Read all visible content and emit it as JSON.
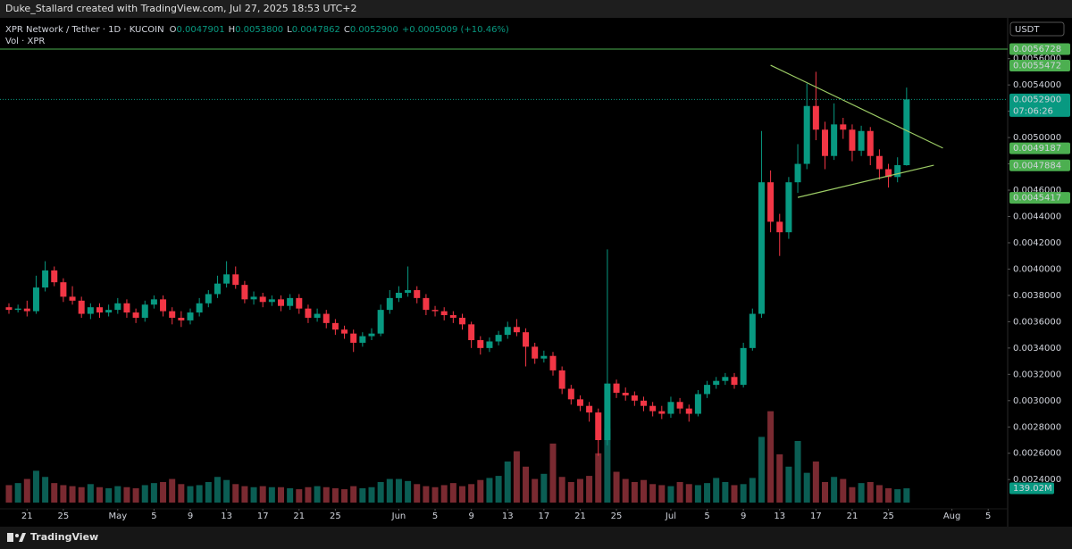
{
  "header": {
    "credit": "Duke_Stallard created with TradingView.com, Jul 27, 2025 18:53 UTC+2"
  },
  "footer": {
    "brand": "TradingView"
  },
  "chart_data": {
    "type": "candlestick",
    "legend": {
      "symbol": "XPR Network / Tether · 1D · KUCOIN",
      "fields": [
        {
          "key": "O",
          "label": "0.0047901"
        },
        {
          "key": "H",
          "label": "0.0053800"
        },
        {
          "key": "L",
          "label": "0.0047862"
        },
        {
          "key": "C",
          "label": "0.0052900"
        }
      ],
      "change": "+0.0005009 (+10.46%)",
      "volume": "Vol · XPR"
    },
    "currency": "USDT",
    "up_color": "#089981",
    "down_color": "#f23645",
    "volume_up_color": "#0b5e54",
    "volume_down_color": "#7a2a31",
    "x": [
      "2025-04-19",
      "2025-04-20",
      "2025-04-21",
      "2025-04-22",
      "2025-04-23",
      "2025-04-24",
      "2025-04-25",
      "2025-04-26",
      "2025-04-27",
      "2025-04-28",
      "2025-04-29",
      "2025-04-30",
      "2025-05-01",
      "2025-05-02",
      "2025-05-03",
      "2025-05-04",
      "2025-05-05",
      "2025-05-06",
      "2025-05-07",
      "2025-05-08",
      "2025-05-09",
      "2025-05-10",
      "2025-05-11",
      "2025-05-12",
      "2025-05-13",
      "2025-05-14",
      "2025-05-15",
      "2025-05-16",
      "2025-05-17",
      "2025-05-18",
      "2025-05-19",
      "2025-05-20",
      "2025-05-21",
      "2025-05-22",
      "2025-05-23",
      "2025-05-24",
      "2025-05-25",
      "2025-05-26",
      "2025-05-27",
      "2025-05-28",
      "2025-05-29",
      "2025-05-30",
      "2025-05-31",
      "2025-06-01",
      "2025-06-02",
      "2025-06-03",
      "2025-06-04",
      "2025-06-05",
      "2025-06-06",
      "2025-06-07",
      "2025-06-08",
      "2025-06-09",
      "2025-06-10",
      "2025-06-11",
      "2025-06-12",
      "2025-06-13",
      "2025-06-14",
      "2025-06-15",
      "2025-06-16",
      "2025-06-17",
      "2025-06-18",
      "2025-06-19",
      "2025-06-20",
      "2025-06-21",
      "2025-06-22",
      "2025-06-23",
      "2025-06-24",
      "2025-06-25",
      "2025-06-26",
      "2025-06-27",
      "2025-06-28",
      "2025-06-29",
      "2025-06-30",
      "2025-07-01",
      "2025-07-02",
      "2025-07-03",
      "2025-07-04",
      "2025-07-05",
      "2025-07-06",
      "2025-07-07",
      "2025-07-08",
      "2025-07-09",
      "2025-07-10",
      "2025-07-11",
      "2025-07-12",
      "2025-07-13",
      "2025-07-14",
      "2025-07-15",
      "2025-07-16",
      "2025-07-17",
      "2025-07-18",
      "2025-07-19",
      "2025-07-20",
      "2025-07-21",
      "2025-07-22",
      "2025-07-23",
      "2025-07-24",
      "2025-07-25",
      "2025-07-26",
      "2025-07-27"
    ],
    "open": [
      0.00371,
      0.00369,
      0.0037,
      0.00368,
      0.00386,
      0.00399,
      0.0039,
      0.00379,
      0.00376,
      0.00366,
      0.00371,
      0.00367,
      0.00369,
      0.00374,
      0.00367,
      0.00363,
      0.00373,
      0.00377,
      0.00368,
      0.00363,
      0.00361,
      0.00367,
      0.00374,
      0.00381,
      0.00389,
      0.00396,
      0.00388,
      0.00377,
      0.00379,
      0.00375,
      0.00377,
      0.00372,
      0.00378,
      0.0037,
      0.00363,
      0.00366,
      0.00359,
      0.00354,
      0.00351,
      0.00344,
      0.00349,
      0.00351,
      0.00369,
      0.00378,
      0.00382,
      0.00384,
      0.00378,
      0.00369,
      0.00368,
      0.00365,
      0.00363,
      0.00358,
      0.00346,
      0.0034,
      0.00345,
      0.0035,
      0.00356,
      0.00352,
      0.00341,
      0.00332,
      0.00334,
      0.00323,
      0.00309,
      0.00301,
      0.00296,
      0.00291,
      0.0027,
      0.00313,
      0.00306,
      0.00304,
      0.003,
      0.00296,
      0.00292,
      0.0029,
      0.00299,
      0.00294,
      0.0029,
      0.00305,
      0.00312,
      0.00315,
      0.00318,
      0.00312,
      0.0034,
      0.00366,
      0.00466,
      0.00436,
      0.00428,
      0.00466,
      0.0048,
      0.00524,
      0.00506,
      0.00486,
      0.0051,
      0.00506,
      0.0049,
      0.00505,
      0.00486,
      0.00476,
      0.0047,
      0.0047901
    ],
    "high": [
      0.00374,
      0.00373,
      0.00376,
      0.00395,
      0.00406,
      0.00402,
      0.00393,
      0.00387,
      0.00379,
      0.00374,
      0.00374,
      0.00373,
      0.00378,
      0.00377,
      0.0037,
      0.00376,
      0.0038,
      0.0038,
      0.00371,
      0.00368,
      0.0037,
      0.00378,
      0.00384,
      0.00395,
      0.00406,
      0.00402,
      0.00391,
      0.00383,
      0.00382,
      0.0038,
      0.0038,
      0.00381,
      0.00381,
      0.00373,
      0.0037,
      0.00369,
      0.00362,
      0.00357,
      0.00354,
      0.00352,
      0.00355,
      0.00373,
      0.00384,
      0.00387,
      0.00402,
      0.00387,
      0.00381,
      0.00372,
      0.00371,
      0.00368,
      0.00366,
      0.0036,
      0.00349,
      0.00348,
      0.00353,
      0.0036,
      0.00362,
      0.00355,
      0.00344,
      0.00338,
      0.00337,
      0.00326,
      0.00312,
      0.00304,
      0.00299,
      0.00294,
      0.00415,
      0.00316,
      0.0031,
      0.00307,
      0.00303,
      0.00299,
      0.00296,
      0.00303,
      0.00302,
      0.00297,
      0.00308,
      0.00315,
      0.00318,
      0.00321,
      0.00321,
      0.00344,
      0.0037,
      0.00505,
      0.00475,
      0.00442,
      0.0047,
      0.00495,
      0.00541,
      0.0055,
      0.00512,
      0.00526,
      0.00515,
      0.0051,
      0.00509,
      0.00508,
      0.00491,
      0.0048,
      0.00485,
      0.00538
    ],
    "low": [
      0.00366,
      0.00367,
      0.00364,
      0.00366,
      0.00383,
      0.00387,
      0.00375,
      0.00373,
      0.00363,
      0.00362,
      0.00363,
      0.00364,
      0.00366,
      0.00363,
      0.00359,
      0.0036,
      0.0037,
      0.00364,
      0.00358,
      0.00356,
      0.00358,
      0.00364,
      0.00371,
      0.00378,
      0.00386,
      0.00385,
      0.00374,
      0.00373,
      0.00371,
      0.00372,
      0.00368,
      0.00369,
      0.00366,
      0.00359,
      0.0036,
      0.00355,
      0.0035,
      0.00347,
      0.00337,
      0.00341,
      0.00346,
      0.00349,
      0.00366,
      0.00375,
      0.00379,
      0.00374,
      0.00365,
      0.00364,
      0.00361,
      0.00359,
      0.00354,
      0.0034,
      0.00335,
      0.00337,
      0.00342,
      0.00347,
      0.00349,
      0.00326,
      0.00328,
      0.00329,
      0.00319,
      0.00305,
      0.00297,
      0.00292,
      0.00284,
      0.00258,
      0.00266,
      0.00302,
      0.003,
      0.00296,
      0.00292,
      0.00288,
      0.00286,
      0.00287,
      0.0029,
      0.00284,
      0.00288,
      0.00302,
      0.00309,
      0.00312,
      0.00309,
      0.0031,
      0.00338,
      0.00363,
      0.00428,
      0.0041,
      0.00423,
      0.00458,
      0.00476,
      0.00498,
      0.00476,
      0.00483,
      0.00499,
      0.00482,
      0.00486,
      0.00479,
      0.00468,
      0.00462,
      0.00466,
      0.0047862
    ],
    "close": [
      0.00369,
      0.0037,
      0.00368,
      0.00386,
      0.00399,
      0.0039,
      0.00379,
      0.00376,
      0.00366,
      0.00371,
      0.00367,
      0.00369,
      0.00374,
      0.00367,
      0.00363,
      0.00373,
      0.00377,
      0.00368,
      0.00363,
      0.00361,
      0.00367,
      0.00374,
      0.00381,
      0.00389,
      0.00396,
      0.00388,
      0.00377,
      0.00379,
      0.00375,
      0.00377,
      0.00372,
      0.00378,
      0.0037,
      0.00363,
      0.00366,
      0.00359,
      0.00354,
      0.00351,
      0.00344,
      0.00349,
      0.00351,
      0.00369,
      0.00378,
      0.00382,
      0.00384,
      0.00378,
      0.00369,
      0.00368,
      0.00365,
      0.00363,
      0.00358,
      0.00346,
      0.0034,
      0.00345,
      0.0035,
      0.00356,
      0.00352,
      0.00341,
      0.00332,
      0.00334,
      0.00323,
      0.00309,
      0.00301,
      0.00296,
      0.00291,
      0.0027,
      0.00313,
      0.00306,
      0.00304,
      0.003,
      0.00296,
      0.00292,
      0.0029,
      0.00299,
      0.00294,
      0.0029,
      0.00305,
      0.00312,
      0.00315,
      0.00318,
      0.00312,
      0.0034,
      0.00366,
      0.00466,
      0.00436,
      0.00428,
      0.00466,
      0.0048,
      0.00524,
      0.00506,
      0.00486,
      0.0051,
      0.00506,
      0.0049,
      0.00505,
      0.00486,
      0.00476,
      0.0047,
      0.0047901,
      0.00529
    ],
    "volume": [
      170000000,
      190000000,
      230000000,
      310000000,
      250000000,
      190000000,
      170000000,
      160000000,
      150000000,
      180000000,
      150000000,
      140000000,
      160000000,
      150000000,
      140000000,
      170000000,
      190000000,
      200000000,
      230000000,
      180000000,
      160000000,
      170000000,
      200000000,
      250000000,
      220000000,
      180000000,
      160000000,
      150000000,
      160000000,
      150000000,
      150000000,
      140000000,
      130000000,
      150000000,
      160000000,
      150000000,
      140000000,
      130000000,
      160000000,
      140000000,
      150000000,
      200000000,
      230000000,
      230000000,
      210000000,
      180000000,
      160000000,
      150000000,
      170000000,
      190000000,
      160000000,
      180000000,
      220000000,
      240000000,
      260000000,
      400000000,
      500000000,
      350000000,
      230000000,
      280000000,
      575000000,
      250000000,
      200000000,
      230000000,
      260000000,
      480000000,
      720000000,
      300000000,
      230000000,
      200000000,
      220000000,
      180000000,
      170000000,
      160000000,
      200000000,
      180000000,
      170000000,
      190000000,
      240000000,
      200000000,
      170000000,
      180000000,
      240000000,
      640000000,
      890000000,
      470000000,
      350000000,
      600000000,
      290000000,
      400000000,
      200000000,
      250000000,
      230000000,
      150000000,
      190000000,
      200000000,
      170000000,
      140000000,
      130000000,
      139020000
    ],
    "last_volume_label": "139.02M",
    "ylim": [
      0.00213,
      0.00591
    ],
    "volume_ylim": [
      0,
      1000000000
    ],
    "yticks": [
      {
        "value": 0.0024,
        "label": "0.0024000"
      },
      {
        "value": 0.0026,
        "label": "0.0026000"
      },
      {
        "value": 0.0028,
        "label": "0.0028000"
      },
      {
        "value": 0.003,
        "label": "0.0030000"
      },
      {
        "value": 0.0032,
        "label": "0.0032000"
      },
      {
        "value": 0.0034,
        "label": "0.0034000"
      },
      {
        "value": 0.0036,
        "label": "0.0036000"
      },
      {
        "value": 0.0038,
        "label": "0.0038000"
      },
      {
        "value": 0.004,
        "label": "0.0040000"
      },
      {
        "value": 0.0042,
        "label": "0.0042000"
      },
      {
        "value": 0.0044,
        "label": "0.0044000"
      },
      {
        "value": 0.0046,
        "label": "0.0046000"
      },
      {
        "value": 0.0048,
        "label": "0.0048000"
      },
      {
        "value": 0.005,
        "label": "0.0050000"
      },
      {
        "value": 0.0052,
        "label": "0.0052000"
      },
      {
        "value": 0.0054,
        "label": "0.0054000"
      },
      {
        "value": 0.0056,
        "label": "0.0056000"
      }
    ],
    "xticks": [
      {
        "value": "2025-04-21",
        "label": "21"
      },
      {
        "value": "2025-04-25",
        "label": "25"
      },
      {
        "value": "2025-05-01",
        "label": "May"
      },
      {
        "value": "2025-05-05",
        "label": "5"
      },
      {
        "value": "2025-05-09",
        "label": "9"
      },
      {
        "value": "2025-05-13",
        "label": "13"
      },
      {
        "value": "2025-05-17",
        "label": "17"
      },
      {
        "value": "2025-05-21",
        "label": "21"
      },
      {
        "value": "2025-05-25",
        "label": "25"
      },
      {
        "value": "2025-06-01",
        "label": "Jun"
      },
      {
        "value": "2025-06-05",
        "label": "5"
      },
      {
        "value": "2025-06-09",
        "label": "9"
      },
      {
        "value": "2025-06-13",
        "label": "13"
      },
      {
        "value": "2025-06-17",
        "label": "17"
      },
      {
        "value": "2025-06-21",
        "label": "21"
      },
      {
        "value": "2025-06-25",
        "label": "25"
      },
      {
        "value": "2025-07-01",
        "label": "Jul"
      },
      {
        "value": "2025-07-05",
        "label": "5"
      },
      {
        "value": "2025-07-09",
        "label": "9"
      },
      {
        "value": "2025-07-13",
        "label": "13"
      },
      {
        "value": "2025-07-17",
        "label": "17"
      },
      {
        "value": "2025-07-21",
        "label": "21"
      },
      {
        "value": "2025-07-25",
        "label": "25"
      },
      {
        "value": "2025-08-01",
        "label": "Aug"
      },
      {
        "value": "2025-08-05",
        "label": "5"
      }
    ],
    "price_labels": [
      {
        "value": 0.0056728,
        "label": "0.0056728",
        "color": "#4caf50",
        "line": true
      },
      {
        "value": 0.0055472,
        "label": "0.0055472",
        "color": "#4caf50"
      },
      {
        "value": 0.00529,
        "label": "0.0052900",
        "sub": "07:06:26",
        "color": "#089981",
        "dotted": true
      },
      {
        "value": 0.0049187,
        "label": "0.0049187",
        "color": "#4caf50"
      },
      {
        "value": 0.0047884,
        "label": "0.0047884",
        "color": "#4caf50"
      },
      {
        "value": 0.0045417,
        "label": "0.0045417",
        "color": "#4caf50"
      }
    ],
    "trendlines": [
      {
        "x": [
          "2025-07-12",
          "2025-07-31"
        ],
        "y": [
          0.00555,
          0.00492
        ],
        "color": "#9ccc65"
      },
      {
        "x": [
          "2025-07-15",
          "2025-07-30"
        ],
        "y": [
          0.004545,
          0.00479
        ],
        "color": "#9ccc65"
      }
    ]
  }
}
